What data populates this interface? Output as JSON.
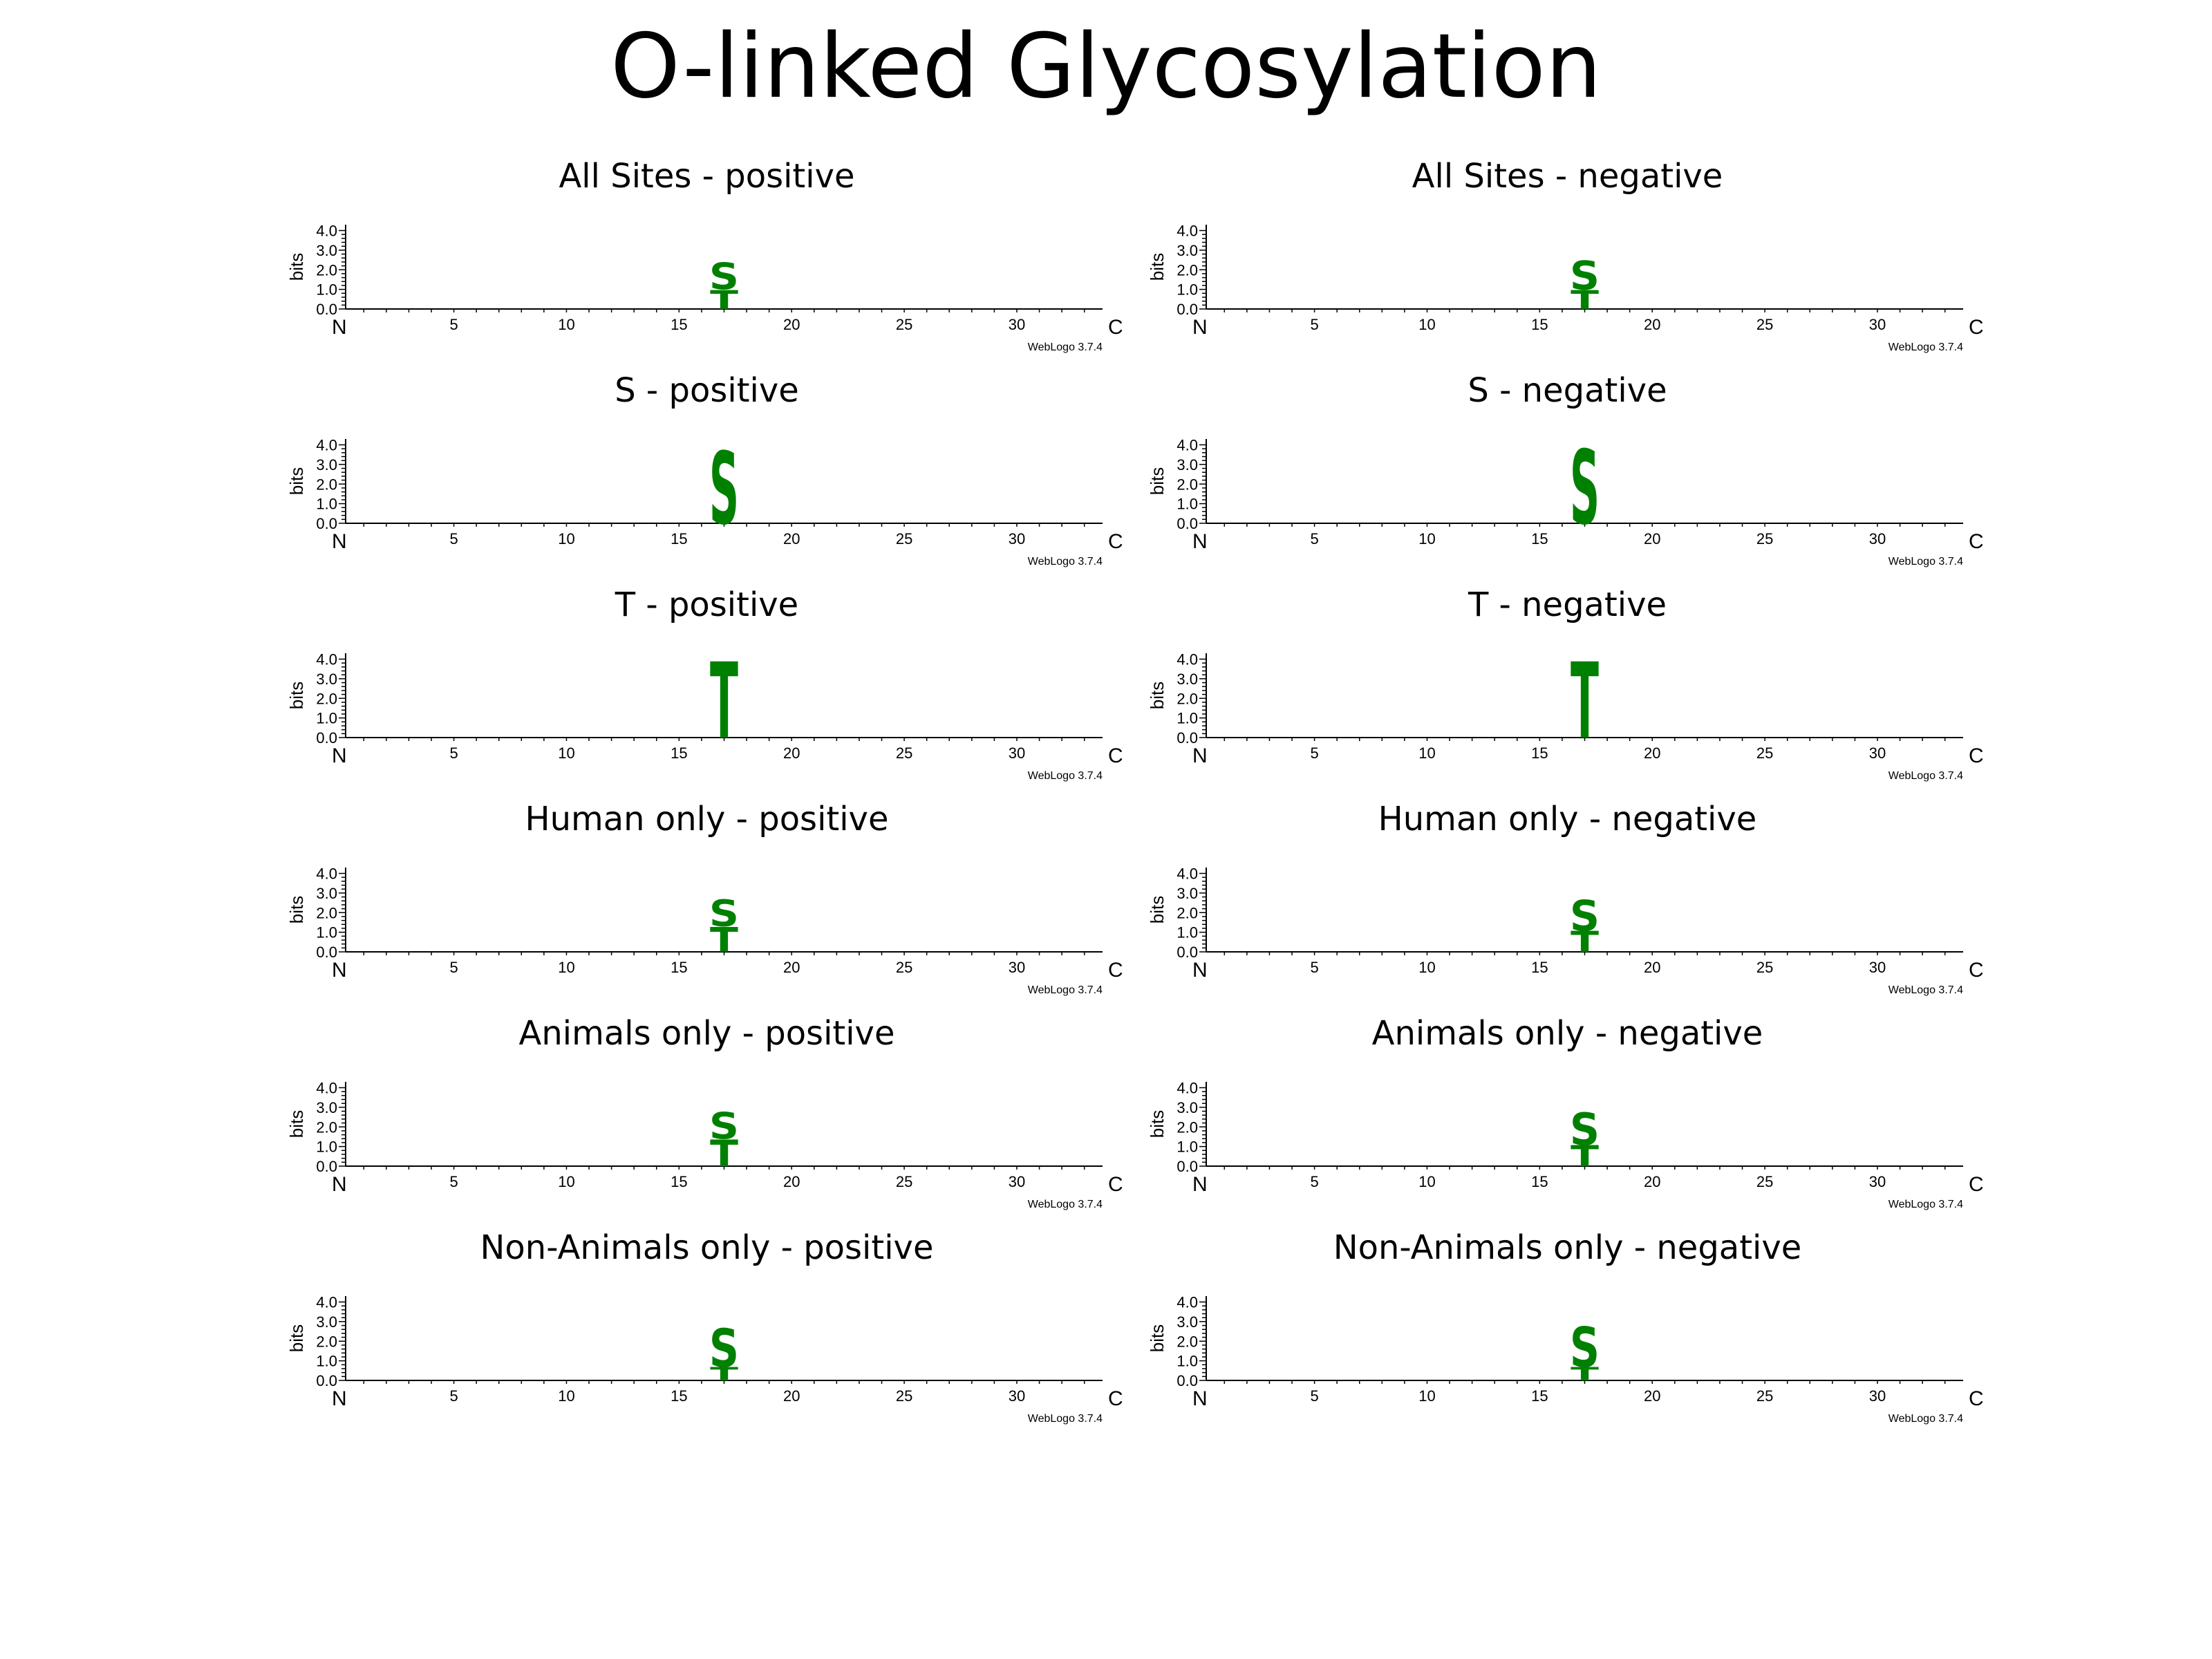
{
  "figure": {
    "title": "O-linked Glycosylation"
  },
  "colors": {
    "polar": "#008000",
    "background_glyph": "#aaaaaa",
    "axis": "#000000"
  },
  "chart_data": [
    {
      "type": "sequence-logo",
      "title": "All Sites - positive",
      "ylabel": "bits",
      "ylim": [
        0,
        4.3
      ],
      "y_ticks": [
        "0.0",
        "1.0",
        "2.0",
        "3.0",
        "4.0"
      ],
      "x_range": [
        1,
        33
      ],
      "x_ticks": [
        "5",
        "10",
        "15",
        "20",
        "25",
        "30"
      ],
      "start_label": "N",
      "end_label": "C",
      "credit": "WebLogo 3.7.4",
      "stacks": [
        {
          "position": 17,
          "letters": [
            {
              "letter": "T",
              "bits": 1.0
            },
            {
              "letter": "S",
              "bits": 1.4
            }
          ]
        }
      ]
    },
    {
      "type": "sequence-logo",
      "title": "All Sites - negative",
      "ylabel": "bits",
      "ylim": [
        0,
        4.3
      ],
      "y_ticks": [
        "0.0",
        "1.0",
        "2.0",
        "3.0",
        "4.0"
      ],
      "x_range": [
        1,
        33
      ],
      "x_ticks": [
        "5",
        "10",
        "15",
        "20",
        "25",
        "30"
      ],
      "start_label": "N",
      "end_label": "C",
      "credit": "WebLogo 3.7.4",
      "stacks": [
        {
          "position": 17,
          "letters": [
            {
              "letter": "T",
              "bits": 1.0
            },
            {
              "letter": "S",
              "bits": 1.5
            }
          ]
        }
      ]
    },
    {
      "type": "sequence-logo",
      "title": "S - positive",
      "ylabel": "bits",
      "ylim": [
        0,
        4.3
      ],
      "y_ticks": [
        "0.0",
        "1.0",
        "2.0",
        "3.0",
        "4.0"
      ],
      "x_range": [
        1,
        33
      ],
      "x_ticks": [
        "5",
        "10",
        "15",
        "20",
        "25",
        "30"
      ],
      "start_label": "N",
      "end_label": "C",
      "credit": "WebLogo 3.7.4",
      "stacks": [
        {
          "position": 17,
          "letters": [
            {
              "letter": "S",
              "bits": 3.8
            }
          ]
        }
      ]
    },
    {
      "type": "sequence-logo",
      "title": "S - negative",
      "ylabel": "bits",
      "ylim": [
        0,
        4.3
      ],
      "y_ticks": [
        "0.0",
        "1.0",
        "2.0",
        "3.0",
        "4.0"
      ],
      "x_range": [
        1,
        33
      ],
      "x_ticks": [
        "5",
        "10",
        "15",
        "20",
        "25",
        "30"
      ],
      "start_label": "N",
      "end_label": "C",
      "credit": "WebLogo 3.7.4",
      "stacks": [
        {
          "position": 17,
          "letters": [
            {
              "letter": "S",
              "bits": 3.9
            }
          ]
        }
      ]
    },
    {
      "type": "sequence-logo",
      "title": "T - positive",
      "ylabel": "bits",
      "ylim": [
        0,
        4.3
      ],
      "y_ticks": [
        "0.0",
        "1.0",
        "2.0",
        "3.0",
        "4.0"
      ],
      "x_range": [
        1,
        33
      ],
      "x_ticks": [
        "5",
        "10",
        "15",
        "20",
        "25",
        "30"
      ],
      "start_label": "N",
      "end_label": "C",
      "credit": "WebLogo 3.7.4",
      "stacks": [
        {
          "position": 17,
          "letters": [
            {
              "letter": "T",
              "bits": 4.0
            }
          ]
        }
      ]
    },
    {
      "type": "sequence-logo",
      "title": "T - negative",
      "ylabel": "bits",
      "ylim": [
        0,
        4.3
      ],
      "y_ticks": [
        "0.0",
        "1.0",
        "2.0",
        "3.0",
        "4.0"
      ],
      "x_range": [
        1,
        33
      ],
      "x_ticks": [
        "5",
        "10",
        "15",
        "20",
        "25",
        "30"
      ],
      "start_label": "N",
      "end_label": "C",
      "credit": "WebLogo 3.7.4",
      "stacks": [
        {
          "position": 17,
          "letters": [
            {
              "letter": "T",
              "bits": 4.0
            }
          ]
        }
      ]
    },
    {
      "type": "sequence-logo",
      "title": "Human only - positive",
      "ylabel": "bits",
      "ylim": [
        0,
        4.3
      ],
      "y_ticks": [
        "0.0",
        "1.0",
        "2.0",
        "3.0",
        "4.0"
      ],
      "x_range": [
        1,
        33
      ],
      "x_ticks": [
        "5",
        "10",
        "15",
        "20",
        "25",
        "30"
      ],
      "start_label": "N",
      "end_label": "C",
      "credit": "WebLogo 3.7.4",
      "stacks": [
        {
          "position": 17,
          "letters": [
            {
              "letter": "T",
              "bits": 1.3
            },
            {
              "letter": "S",
              "bits": 1.4
            }
          ]
        }
      ]
    },
    {
      "type": "sequence-logo",
      "title": "Human only - negative",
      "ylabel": "bits",
      "ylim": [
        0,
        4.3
      ],
      "y_ticks": [
        "0.0",
        "1.0",
        "2.0",
        "3.0",
        "4.0"
      ],
      "x_range": [
        1,
        33
      ],
      "x_ticks": [
        "5",
        "10",
        "15",
        "20",
        "25",
        "30"
      ],
      "start_label": "N",
      "end_label": "C",
      "credit": "WebLogo 3.7.4",
      "stacks": [
        {
          "position": 17,
          "letters": [
            {
              "letter": "T",
              "bits": 1.1
            },
            {
              "letter": "S",
              "bits": 1.6
            }
          ]
        }
      ]
    },
    {
      "type": "sequence-logo",
      "title": "Animals only - positive",
      "ylabel": "bits",
      "ylim": [
        0,
        4.3
      ],
      "y_ticks": [
        "0.0",
        "1.0",
        "2.0",
        "3.0",
        "4.0"
      ],
      "x_range": [
        1,
        33
      ],
      "x_ticks": [
        "5",
        "10",
        "15",
        "20",
        "25",
        "30"
      ],
      "start_label": "N",
      "end_label": "C",
      "credit": "WebLogo 3.7.4",
      "stacks": [
        {
          "position": 17,
          "letters": [
            {
              "letter": "T",
              "bits": 1.4
            },
            {
              "letter": "S",
              "bits": 1.4
            }
          ]
        }
      ]
    },
    {
      "type": "sequence-logo",
      "title": "Animals only - negative",
      "ylabel": "bits",
      "ylim": [
        0,
        4.3
      ],
      "y_ticks": [
        "0.0",
        "1.0",
        "2.0",
        "3.0",
        "4.0"
      ],
      "x_range": [
        1,
        33
      ],
      "x_ticks": [
        "5",
        "10",
        "15",
        "20",
        "25",
        "30"
      ],
      "start_label": "N",
      "end_label": "C",
      "credit": "WebLogo 3.7.4",
      "stacks": [
        {
          "position": 17,
          "letters": [
            {
              "letter": "T",
              "bits": 1.1
            },
            {
              "letter": "S",
              "bits": 1.7
            }
          ]
        }
      ]
    },
    {
      "type": "sequence-logo",
      "title": "Non-Animals only - positive",
      "ylabel": "bits",
      "ylim": [
        0,
        4.3
      ],
      "y_ticks": [
        "0.0",
        "1.0",
        "2.0",
        "3.0",
        "4.0"
      ],
      "x_range": [
        1,
        33
      ],
      "x_ticks": [
        "5",
        "10",
        "15",
        "20",
        "25",
        "30"
      ],
      "start_label": "N",
      "end_label": "C",
      "credit": "WebLogo 3.7.4",
      "stacks": [
        {
          "position": 17,
          "letters": [
            {
              "letter": "T",
              "bits": 0.7
            },
            {
              "letter": "S",
              "bits": 2.0
            }
          ]
        }
      ]
    },
    {
      "type": "sequence-logo",
      "title": "Non-Animals only - negative",
      "ylabel": "bits",
      "ylim": [
        0,
        4.3
      ],
      "y_ticks": [
        "0.0",
        "1.0",
        "2.0",
        "3.0",
        "4.0"
      ],
      "x_range": [
        1,
        33
      ],
      "x_ticks": [
        "5",
        "10",
        "15",
        "20",
        "25",
        "30"
      ],
      "start_label": "N",
      "end_label": "C",
      "credit": "WebLogo 3.7.4",
      "stacks": [
        {
          "position": 17,
          "letters": [
            {
              "letter": "T",
              "bits": 0.7
            },
            {
              "letter": "S",
              "bits": 2.1
            }
          ]
        }
      ]
    }
  ]
}
